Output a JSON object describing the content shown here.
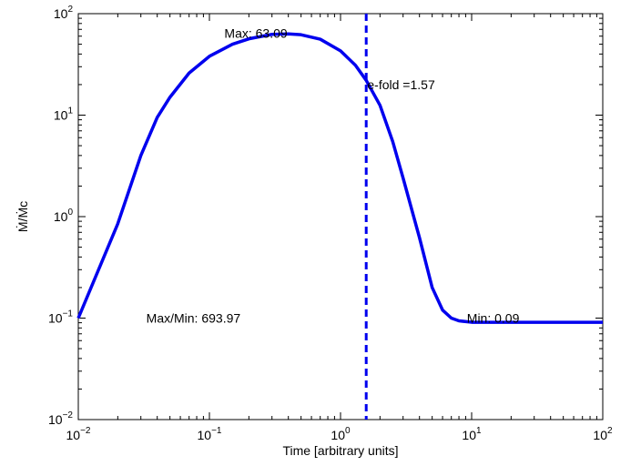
{
  "chart_data": {
    "type": "line",
    "title": "",
    "xlabel": "Time [arbitrary units]",
    "ylabel": "Ṁ/Ṁc",
    "xscale": "log",
    "yscale": "log",
    "xlim": [
      0.01,
      100
    ],
    "ylim": [
      0.01,
      100
    ],
    "x_ticks": [
      {
        "base": "10",
        "exp": "−2",
        "value": 0.01
      },
      {
        "base": "10",
        "exp": "−1",
        "value": 0.1
      },
      {
        "base": "10",
        "exp": "0",
        "value": 1
      },
      {
        "base": "10",
        "exp": "1",
        "value": 10
      },
      {
        "base": "10",
        "exp": "2",
        "value": 100
      }
    ],
    "y_ticks": [
      {
        "base": "10",
        "exp": "−2",
        "value": 0.01
      },
      {
        "base": "10",
        "exp": "−1",
        "value": 0.1
      },
      {
        "base": "10",
        "exp": "0",
        "value": 1
      },
      {
        "base": "10",
        "exp": "1",
        "value": 10
      },
      {
        "base": "10",
        "exp": "2",
        "value": 100
      }
    ],
    "grid": false,
    "line_color": "#0000ee",
    "series": [
      {
        "x": [
          0.01,
          0.02,
          0.03,
          0.04,
          0.05,
          0.07,
          0.1,
          0.15,
          0.2,
          0.3,
          0.4,
          0.5,
          0.7,
          1.0,
          1.3,
          1.57,
          2.0,
          2.5,
          3.0,
          4.0,
          5.0,
          6.0,
          7.0,
          8.0,
          10.0,
          15.0,
          30.0,
          100.0
        ],
        "y": [
          0.1,
          0.85,
          4.0,
          9.5,
          15.0,
          26.0,
          38.0,
          50.0,
          56.5,
          62.5,
          63.09,
          62.0,
          56.0,
          43.0,
          31.0,
          22.0,
          12.5,
          5.5,
          2.4,
          0.62,
          0.2,
          0.12,
          0.1,
          0.094,
          0.091,
          0.0909,
          0.0909,
          0.0909
        ]
      }
    ],
    "vline": {
      "x": 1.57,
      "color": "#0000ee",
      "style": "dashed"
    },
    "annotations": [
      {
        "text": "Max: 63.09",
        "x": 0.13,
        "y": 64
      },
      {
        "text": "e-fold =1.57",
        "x": 1.6,
        "y": 20
      },
      {
        "text": "Max/Min: 693.97",
        "x": 0.033,
        "y": 0.1
      },
      {
        "text": "Min: 0.09",
        "x": 9.2,
        "y": 0.1
      }
    ]
  }
}
